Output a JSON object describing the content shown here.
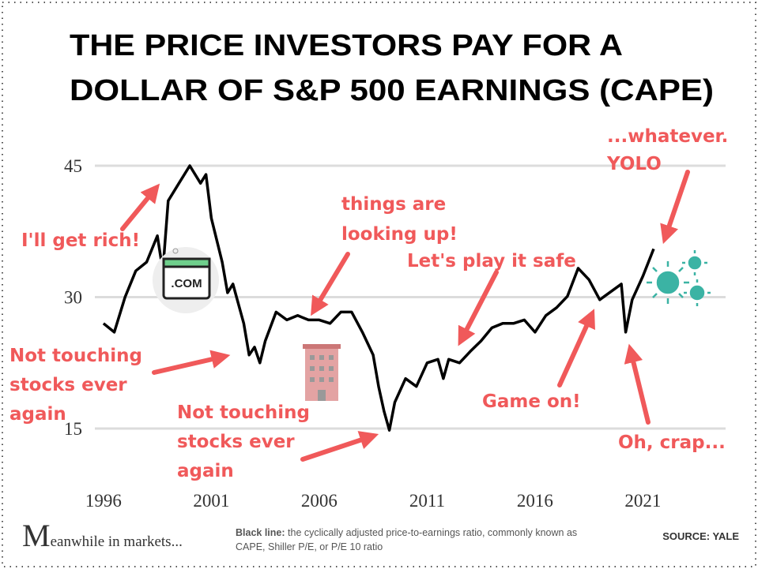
{
  "chart_data": {
    "type": "line",
    "title": [
      "THE PRICE INVESTORS PAY FOR A",
      "DOLLAR OF S&P 500 EARNINGS (CAPE)"
    ],
    "x": [
      1996.0,
      1996.5,
      1997.0,
      1997.5,
      1998.0,
      1998.5,
      1998.75,
      1999.0,
      1999.5,
      2000.0,
      2000.5,
      2000.75,
      2001.0,
      2001.5,
      2001.75,
      2002.0,
      2002.5,
      2002.75,
      2003.0,
      2003.25,
      2003.5,
      2004.0,
      2004.5,
      2005.0,
      2005.5,
      2006.0,
      2006.5,
      2007.0,
      2007.5,
      2008.0,
      2008.5,
      2008.75,
      2009.0,
      2009.25,
      2009.5,
      2010.0,
      2010.5,
      2011.0,
      2011.5,
      2011.75,
      2012.0,
      2012.5,
      2013.0,
      2013.5,
      2014.0,
      2014.5,
      2015.0,
      2015.5,
      2016.0,
      2016.5,
      2017.0,
      2017.5,
      2018.0,
      2018.5,
      2019.0,
      2019.5,
      2020.0,
      2020.2,
      2020.5,
      2021.0,
      2021.5
    ],
    "values": [
      27,
      26,
      30,
      33,
      34,
      37,
      33,
      41,
      43,
      45,
      43,
      44,
      39,
      34,
      30.5,
      31.5,
      27,
      23.4,
      24.3,
      22.5,
      25,
      28.3,
      27.4,
      27.9,
      27.4,
      27.4,
      27,
      28.3,
      28.3,
      26,
      23.4,
      19.8,
      17,
      14.8,
      18,
      20.7,
      19.8,
      22.5,
      22.9,
      20.7,
      22.9,
      22.5,
      23.8,
      25,
      26.5,
      27,
      27,
      27.4,
      26,
      27.9,
      28.8,
      30.1,
      33.3,
      32,
      29.7,
      30.6,
      31.5,
      26,
      29.7,
      32.4,
      35.5
    ],
    "color": "#000000",
    "xlim": [
      1995,
      2025
    ],
    "xticks": [
      1996,
      2001,
      2006,
      2011,
      2016,
      2021
    ],
    "ylim": [
      10,
      48
    ],
    "yticks": [
      15,
      30,
      45
    ],
    "grid": true,
    "annotations": [
      [
        "I'll get rich!"
      ],
      [
        "things are",
        "looking up!"
      ],
      [
        "Let's play it safe"
      ],
      [
        "...whatever.",
        "YOLO"
      ],
      [
        "Not touching",
        "stocks ever",
        "again"
      ],
      [
        "Not touching",
        "stocks ever",
        "again"
      ],
      [
        "Game on!"
      ],
      [
        "Oh, crap..."
      ]
    ],
    "logo": [
      "M",
      "eanwhile in markets..."
    ],
    "footnote": {
      "label": "Black line:",
      "lines": [
        "the cyclically adjusted price-to-earnings ratio, commonly known as",
        "CAPE, Shiller P/E, or P/E 10 ratio"
      ]
    },
    "source": "SOURCE:  YALE"
  }
}
